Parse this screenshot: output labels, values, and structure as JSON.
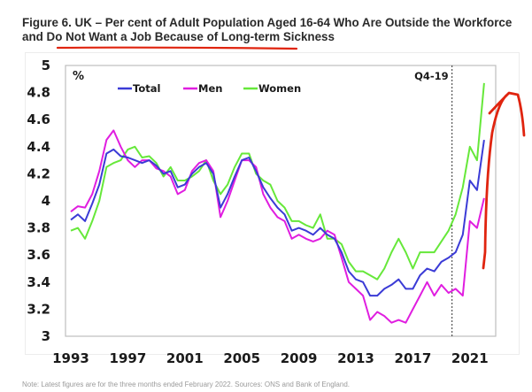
{
  "figure": {
    "title_line1": "Figure 6. UK – Per cent of Adult Population Aged 16-64 Who Are Outside the Workforce",
    "title_line2": "and Do Not Want a Job Because of Long-term Sickness",
    "note": "Note: Latest figures are for the three months ended February 2022. Sources: ONS and Bank of England."
  },
  "colors": {
    "Total": "#3b3bd6",
    "Men": "#e01ee0",
    "Women": "#66e83a",
    "annotation": "#e0240f",
    "frame": "#bdbdbd"
  },
  "chart_data": {
    "type": "line",
    "title": "Figure 6. UK – Per cent of Adult Population Aged 16-64 Who Are Outside the Workforce and Do Not Want a Job Because of Long-term Sickness",
    "xlabel": "",
    "ylabel": "%",
    "ylim": [
      3,
      5
    ],
    "xlim": [
      1992.6,
      2022.8
    ],
    "yticks": [
      "3",
      "3.2",
      "3.4",
      "3.6",
      "3.8",
      "4",
      "4.2",
      "4.4",
      "4.6",
      "4.8",
      "5"
    ],
    "ytick_values": [
      3,
      3.2,
      3.4,
      3.6,
      3.8,
      4,
      4.2,
      4.4,
      4.6,
      4.8,
      5
    ],
    "xticks": [
      "1993",
      "1997",
      "2001",
      "2005",
      "2009",
      "2013",
      "2017",
      "2021"
    ],
    "xtick_values": [
      1993,
      1997,
      2001,
      2005,
      2009,
      2013,
      2017,
      2021
    ],
    "grid": false,
    "legend": {
      "position": "top-left",
      "entries": [
        "Total",
        "Men",
        "Women"
      ]
    },
    "annotations": [
      {
        "label": "Q4-19",
        "x": 2019.75,
        "style": "dotted vertical line"
      }
    ],
    "x": [
      1993.0,
      1993.5,
      1994.0,
      1994.5,
      1995.0,
      1995.5,
      1996.0,
      1996.5,
      1997.0,
      1997.5,
      1998.0,
      1998.5,
      1999.0,
      1999.5,
      2000.0,
      2000.5,
      2001.0,
      2001.5,
      2002.0,
      2002.5,
      2003.0,
      2003.5,
      2004.0,
      2004.5,
      2005.0,
      2005.5,
      2006.0,
      2006.5,
      2007.0,
      2007.5,
      2008.0,
      2008.5,
      2009.0,
      2009.5,
      2010.0,
      2010.5,
      2011.0,
      2011.5,
      2012.0,
      2012.5,
      2013.0,
      2013.5,
      2014.0,
      2014.5,
      2015.0,
      2015.5,
      2016.0,
      2016.5,
      2017.0,
      2017.5,
      2018.0,
      2018.5,
      2019.0,
      2019.5,
      2020.0,
      2020.5,
      2021.0,
      2021.5,
      2022.0
    ],
    "series": [
      {
        "name": "Total",
        "values": [
          3.86,
          3.9,
          3.85,
          3.98,
          4.12,
          4.35,
          4.38,
          4.33,
          4.32,
          4.3,
          4.28,
          4.3,
          4.26,
          4.2,
          4.22,
          4.1,
          4.12,
          4.2,
          4.25,
          4.28,
          4.2,
          3.95,
          4.05,
          4.18,
          4.3,
          4.32,
          4.22,
          4.1,
          4.02,
          3.95,
          3.9,
          3.78,
          3.8,
          3.78,
          3.75,
          3.8,
          3.75,
          3.72,
          3.62,
          3.48,
          3.42,
          3.4,
          3.3,
          3.3,
          3.35,
          3.38,
          3.42,
          3.35,
          3.35,
          3.45,
          3.5,
          3.48,
          3.55,
          3.58,
          3.62,
          3.75,
          4.15,
          4.08,
          4.45
        ]
      },
      {
        "name": "Men",
        "values": [
          3.92,
          3.96,
          3.95,
          4.05,
          4.22,
          4.45,
          4.52,
          4.4,
          4.3,
          4.25,
          4.3,
          4.3,
          4.24,
          4.22,
          4.18,
          4.05,
          4.08,
          4.22,
          4.28,
          4.3,
          4.22,
          3.88,
          4.0,
          4.15,
          4.3,
          4.3,
          4.25,
          4.05,
          3.95,
          3.88,
          3.85,
          3.72,
          3.75,
          3.72,
          3.7,
          3.72,
          3.78,
          3.75,
          3.58,
          3.4,
          3.35,
          3.3,
          3.12,
          3.18,
          3.15,
          3.1,
          3.12,
          3.1,
          3.2,
          3.3,
          3.4,
          3.3,
          3.38,
          3.32,
          3.35,
          3.3,
          3.85,
          3.8,
          4.02
        ]
      },
      {
        "name": "Women",
        "values": [
          3.78,
          3.8,
          3.72,
          3.85,
          4.0,
          4.25,
          4.28,
          4.3,
          4.38,
          4.4,
          4.32,
          4.33,
          4.28,
          4.18,
          4.25,
          4.15,
          4.15,
          4.18,
          4.22,
          4.3,
          4.15,
          4.05,
          4.12,
          4.25,
          4.35,
          4.35,
          4.2,
          4.15,
          4.12,
          4.0,
          3.95,
          3.85,
          3.85,
          3.82,
          3.8,
          3.9,
          3.72,
          3.72,
          3.68,
          3.55,
          3.48,
          3.48,
          3.45,
          3.42,
          3.5,
          3.62,
          3.72,
          3.62,
          3.5,
          3.62,
          3.62,
          3.62,
          3.7,
          3.78,
          3.9,
          4.1,
          4.4,
          4.3,
          4.87
        ]
      }
    ]
  }
}
